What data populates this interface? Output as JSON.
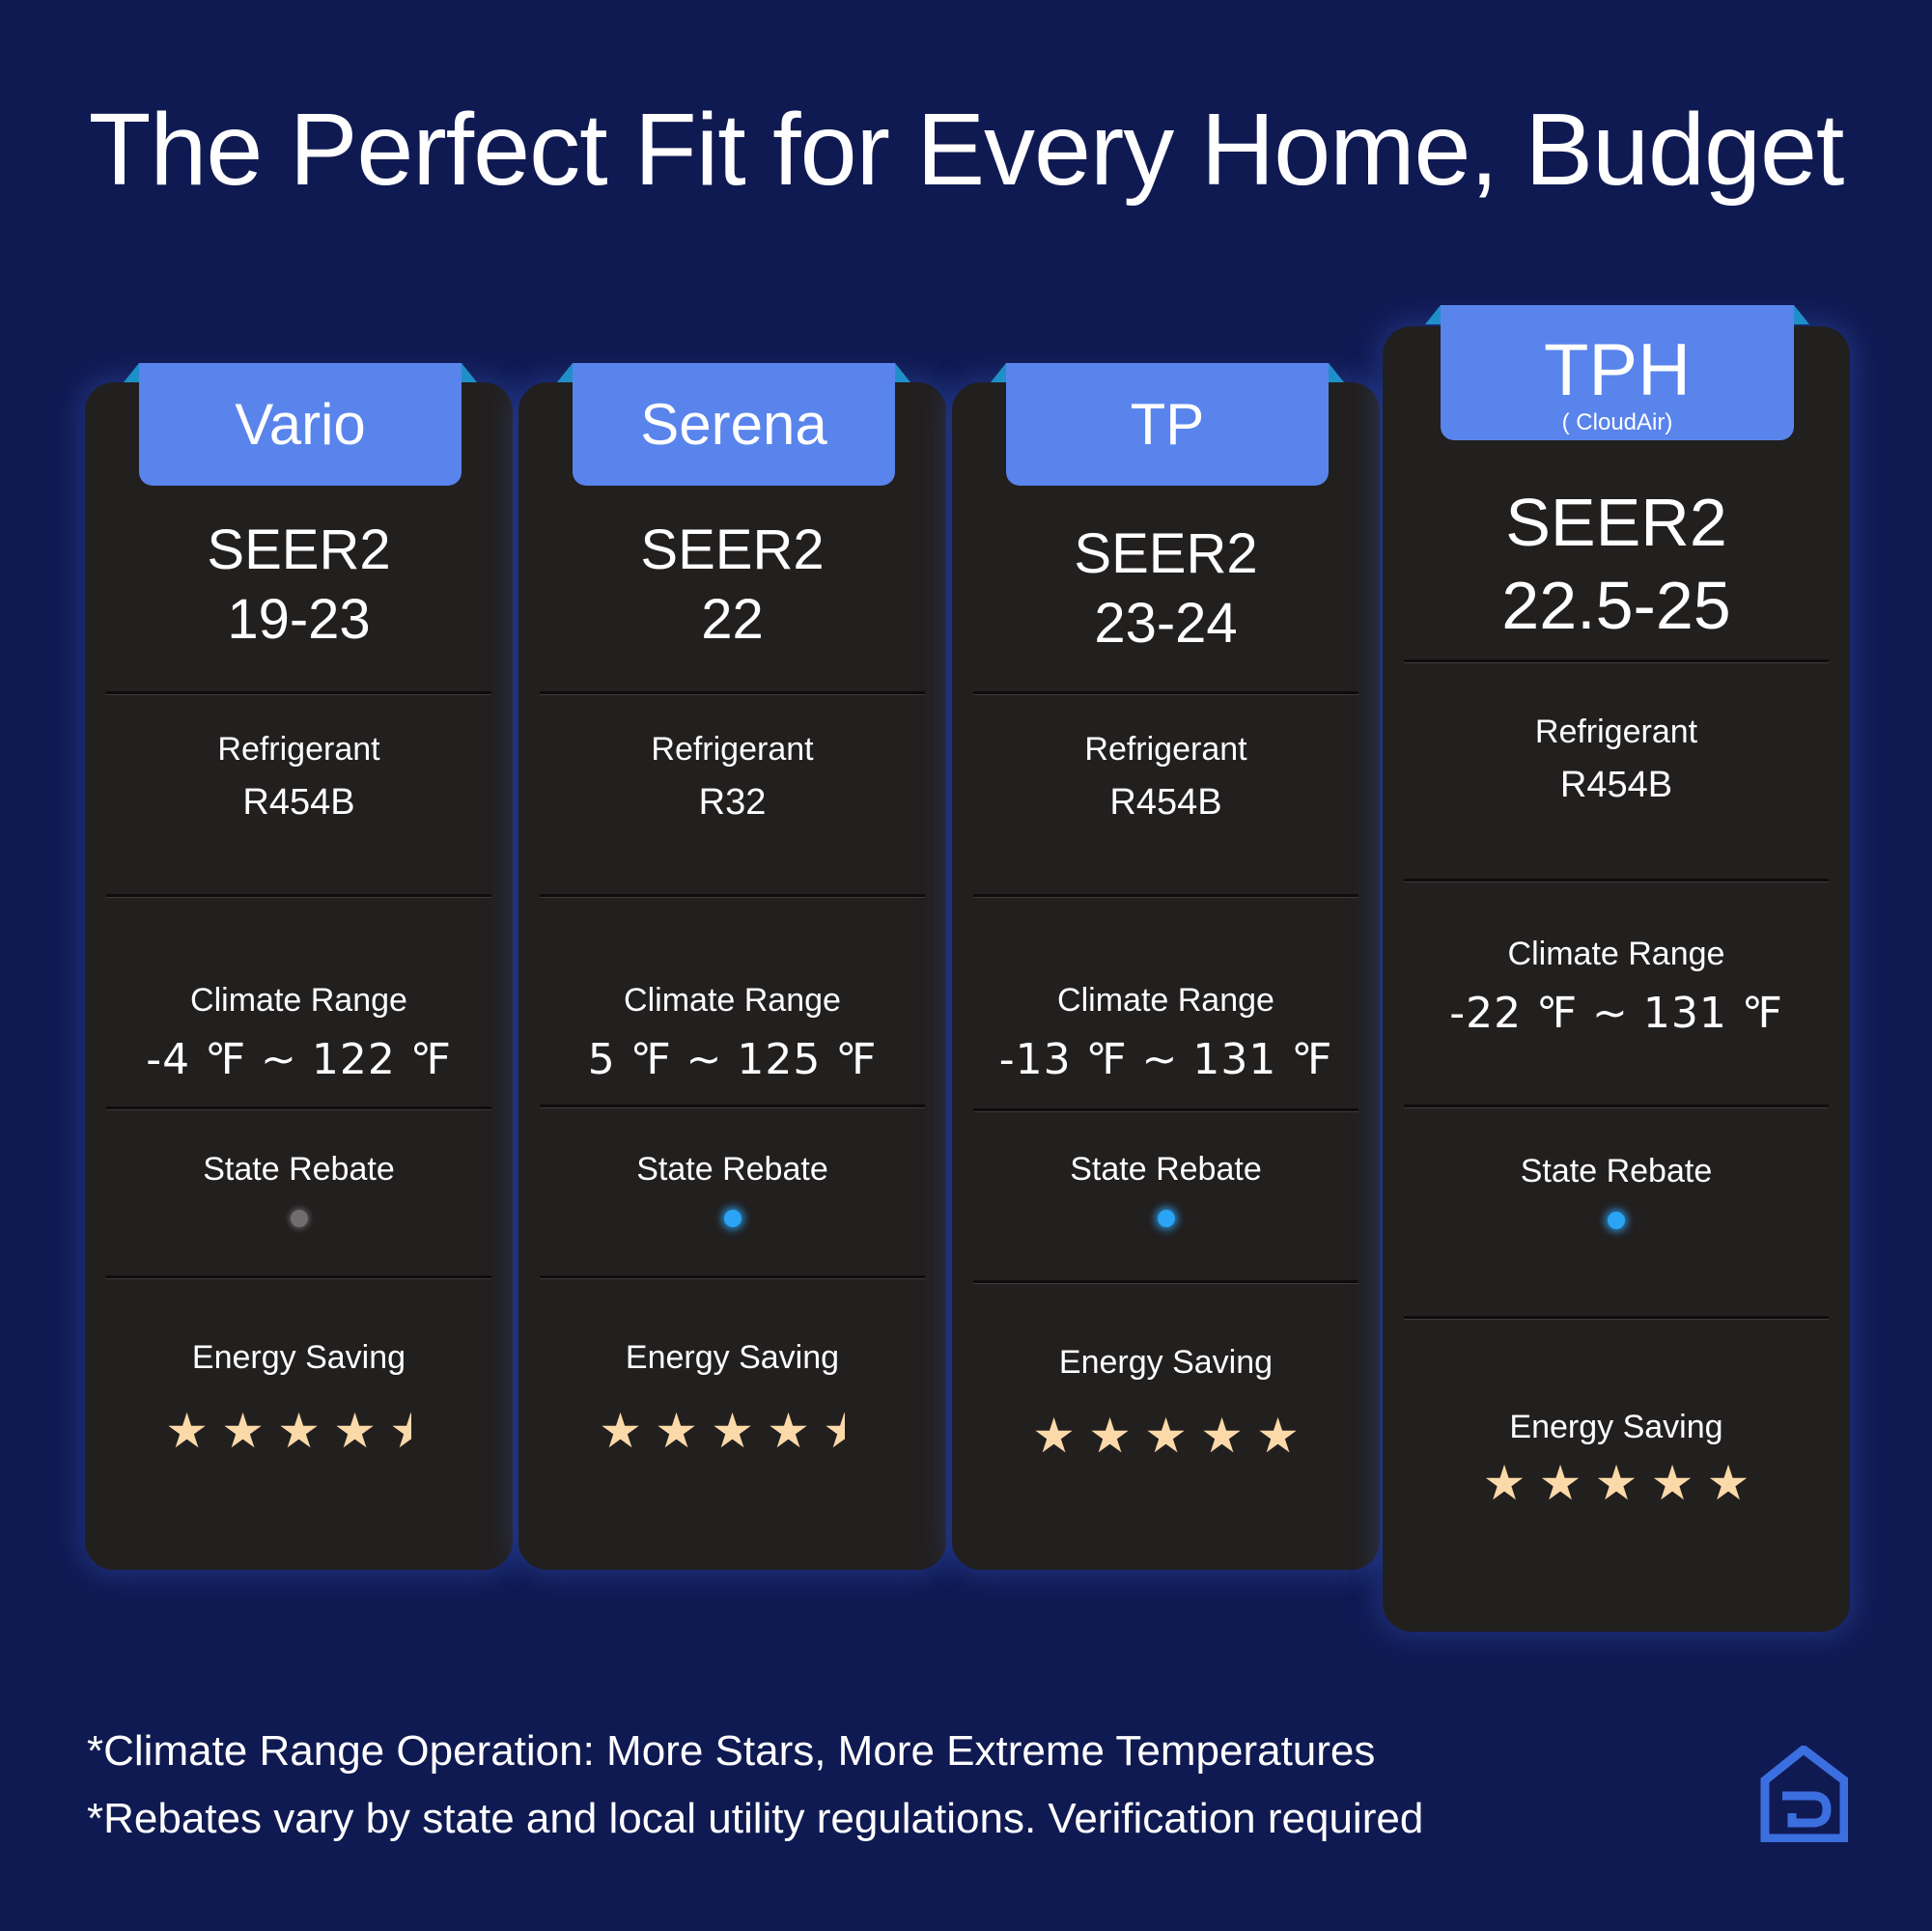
{
  "title": "The Perfect Fit for Every Home, Budget",
  "labels": {
    "refrigerant": "Refrigerant",
    "climate": "Climate Range",
    "rebate": "State Rebate",
    "energy": "Energy Saving"
  },
  "products": [
    {
      "name": "Vario",
      "subtitle": "",
      "seer_label": "SEER2",
      "seer_value": "19-23",
      "refrigerant": "R454B",
      "climate": "-4 ℉ ~ 122 ℉",
      "rebate": false,
      "energy_stars": 4.5
    },
    {
      "name": "Serena",
      "subtitle": "",
      "seer_label": "SEER2",
      "seer_value": "22",
      "refrigerant": "R32",
      "climate": "5 ℉ ~ 125 ℉",
      "rebate": true,
      "energy_stars": 4.5
    },
    {
      "name": "TP",
      "subtitle": "",
      "seer_label": "SEER2",
      "seer_value": "23-24",
      "refrigerant": "R454B",
      "climate": "-13 ℉ ~ 131 ℉",
      "rebate": true,
      "energy_stars": 5
    },
    {
      "name": "TPH",
      "subtitle": "( CloudAir)",
      "seer_label": "SEER2",
      "seer_value": "22.5-25",
      "refrigerant": "R454B",
      "climate": "-22 ℉ ~ 131 ℉",
      "rebate": true,
      "energy_stars": 5
    }
  ],
  "footnotes": [
    "*Climate Range Operation: More Stars, More Extreme Temperatures",
    "*Rebates vary by state and local utility regulations. Verification required"
  ],
  "icons": {
    "logo": "house-logo-icon",
    "star": "star-icon",
    "dot": "rebate-indicator-icon"
  },
  "colors": {
    "background": "#101a52",
    "card": "#221f1f",
    "tab": "#5984ec",
    "tab_flap": "#1f8fc9",
    "star": "#fcd9a8",
    "rebate_on": "#2ba4f5",
    "rebate_off": "#6f6d6d",
    "logo": "#3b6fe0"
  }
}
